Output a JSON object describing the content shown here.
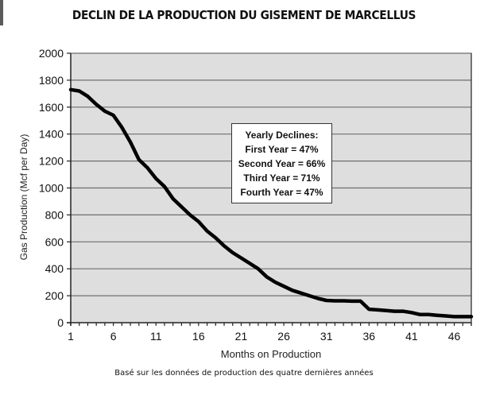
{
  "header": {
    "title": "DECLIN DE LA PRODUCTION DU GISEMENT DE MARCELLUS"
  },
  "footer": {
    "subtitle": "Basé sur les données de production des quatre dernières années"
  },
  "annotation": {
    "heading": "Yearly Declines:",
    "lines": [
      "First Year = 47%",
      "Second Year =  66%",
      "Third Year = 71%",
      "Fourth Year = 47%"
    ]
  },
  "colors": {
    "plot_bg": "#dedede",
    "grid": "#6e6e6e",
    "line": "#000000",
    "axis": "#222222"
  },
  "chart_data": {
    "type": "line",
    "title": "DECLIN DE LA PRODUCTION DU GISEMENT DE MARCELLUS",
    "subtitle": "Basé sur les données de production des quatre dernières années",
    "xlabel": "Months on Production",
    "ylabel": "Gas Production (Mcf per Day)",
    "xlim": [
      1,
      48
    ],
    "ylim": [
      0,
      2000
    ],
    "x_ticks": [
      1,
      6,
      11,
      16,
      21,
      26,
      31,
      36,
      41,
      46
    ],
    "y_ticks": [
      0,
      200,
      400,
      600,
      800,
      1000,
      1200,
      1400,
      1600,
      1800,
      2000
    ],
    "grid": "horizontal",
    "legend": null,
    "annotation": [
      "Yearly Declines:",
      "First Year = 47%",
      "Second Year = 66%",
      "Third Year = 71%",
      "Fourth Year = 47%"
    ],
    "x": [
      1,
      2,
      3,
      4,
      5,
      6,
      7,
      8,
      9,
      10,
      11,
      12,
      13,
      14,
      15,
      16,
      17,
      18,
      19,
      20,
      21,
      22,
      23,
      24,
      25,
      26,
      27,
      28,
      29,
      30,
      31,
      32,
      33,
      34,
      35,
      36,
      37,
      38,
      39,
      40,
      41,
      42,
      43,
      44,
      45,
      46,
      47,
      48
    ],
    "series": [
      {
        "name": "Gas Production",
        "values": [
          1730,
          1720,
          1680,
          1620,
          1570,
          1540,
          1450,
          1340,
          1210,
          1150,
          1070,
          1010,
          920,
          860,
          800,
          750,
          680,
          630,
          570,
          520,
          480,
          440,
          400,
          340,
          300,
          270,
          240,
          220,
          200,
          180,
          165,
          162,
          162,
          160,
          160,
          100,
          95,
          90,
          85,
          85,
          75,
          60,
          60,
          55,
          50,
          45,
          45,
          45
        ]
      }
    ]
  }
}
